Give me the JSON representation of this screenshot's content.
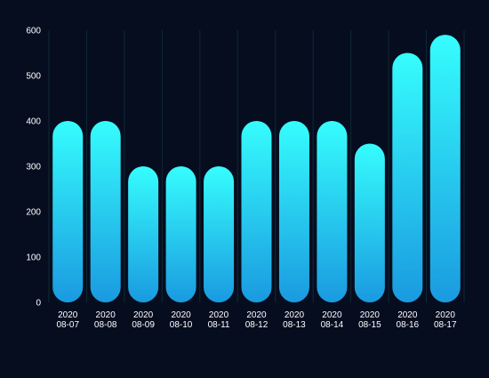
{
  "chart_data": {
    "type": "bar",
    "categories": [
      [
        "2020",
        "08-07"
      ],
      [
        "2020",
        "08-08"
      ],
      [
        "2020",
        "08-09"
      ],
      [
        "2020",
        "08-10"
      ],
      [
        "2020",
        "08-11"
      ],
      [
        "2020",
        "08-12"
      ],
      [
        "2020",
        "08-13"
      ],
      [
        "2020",
        "08-14"
      ],
      [
        "2020",
        "08-15"
      ],
      [
        "2020",
        "08-16"
      ],
      [
        "2020",
        "08-17"
      ]
    ],
    "values": [
      400,
      400,
      300,
      300,
      300,
      400,
      400,
      400,
      350,
      550,
      590
    ],
    "ylim": [
      0,
      600
    ],
    "yticks": [
      0,
      100,
      200,
      300,
      400,
      500,
      600
    ],
    "grid": "vertical",
    "title": "",
    "xlabel": "",
    "ylabel": ""
  },
  "colors": {
    "background": "#060d1f",
    "bar_top": "#36fdfd",
    "bar_bottom": "#1a9ae0",
    "grid": "#0e2a34",
    "axis_text": "#ffffff"
  }
}
